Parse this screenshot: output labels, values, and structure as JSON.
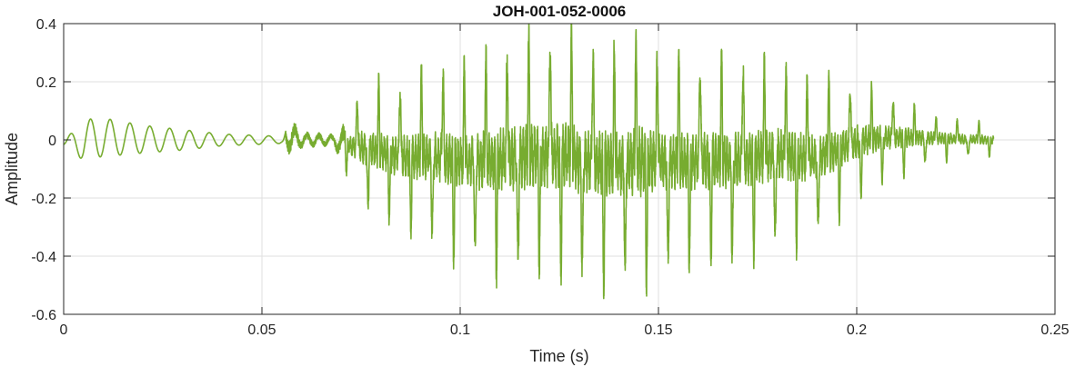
{
  "chart_data": {
    "type": "line",
    "title": "JOH-001-052-0006",
    "xlabel": "Time (s)",
    "ylabel": "Amplitude",
    "xlim": [
      0,
      0.25
    ],
    "ylim": [
      -0.6,
      0.4
    ],
    "xticks": [
      0,
      0.05,
      0.1,
      0.15,
      0.2,
      0.25
    ],
    "xtick_labels": [
      "0",
      "0.05",
      "0.1",
      "0.15",
      "0.2",
      "0.25"
    ],
    "yticks": [
      -0.6,
      -0.4,
      -0.2,
      0,
      0.2,
      0.4
    ],
    "ytick_labels": [
      "-0.6",
      "-0.4",
      "-0.2",
      "0",
      "0.2",
      "0.4"
    ],
    "grid": true,
    "line_color": "#77ac30",
    "series": [
      {
        "x_start": 0,
        "x_end": 0.2345,
        "envelope": {
          "t": [
            0,
            0.005,
            0.008,
            0.02,
            0.03,
            0.04,
            0.05,
            0.055,
            0.057,
            0.06,
            0.068,
            0.071,
            0.075,
            0.085,
            0.095,
            0.1,
            0.11,
            0.12,
            0.125,
            0.13,
            0.14,
            0.143,
            0.15,
            0.16,
            0.17,
            0.18,
            0.19,
            0.2,
            0.21,
            0.22,
            0.2345
          ],
          "max": [
            0.0,
            0.06,
            0.08,
            0.05,
            0.035,
            0.02,
            0.015,
            0.012,
            0.08,
            0.03,
            0.02,
            0.06,
            0.17,
            0.19,
            0.24,
            0.25,
            0.3,
            0.34,
            0.36,
            0.32,
            0.31,
            0.35,
            0.29,
            0.28,
            0.27,
            0.26,
            0.2,
            0.19,
            0.14,
            0.08,
            0.05
          ],
          "min": [
            -0.02,
            -0.07,
            -0.06,
            -0.045,
            -0.035,
            -0.02,
            -0.015,
            -0.012,
            -0.06,
            -0.03,
            -0.02,
            -0.1,
            -0.22,
            -0.3,
            -0.36,
            -0.4,
            -0.44,
            -0.45,
            -0.46,
            -0.46,
            -0.49,
            -0.5,
            -0.44,
            -0.42,
            -0.41,
            -0.36,
            -0.33,
            -0.2,
            -0.12,
            -0.07,
            -0.05
          ]
        },
        "values_note": "estimated amplitude envelope read from the plot"
      }
    ]
  }
}
